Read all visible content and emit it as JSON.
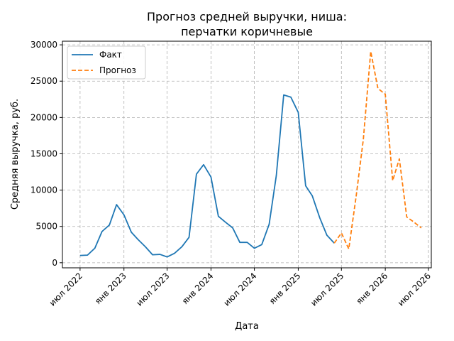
{
  "chart_data": {
    "type": "line",
    "title_lines": [
      "Прогноз средней выручки, ниша:",
      "перчатки коричневые"
    ],
    "xlabel": "Дата",
    "ylabel": "Средняя выручка, руб.",
    "ylim": [
      -700,
      30500
    ],
    "xlim": [
      "2022-04-18",
      "2026-07-13"
    ],
    "y_ticks": [
      0,
      5000,
      10000,
      15000,
      20000,
      25000,
      30000
    ],
    "x_ticks": [
      {
        "date": "2022-07-01",
        "label": "июл 2022"
      },
      {
        "date": "2023-01-01",
        "label": "янв 2023"
      },
      {
        "date": "2023-07-01",
        "label": "июл 2023"
      },
      {
        "date": "2024-01-01",
        "label": "янв 2024"
      },
      {
        "date": "2024-07-01",
        "label": "июл 2024"
      },
      {
        "date": "2025-01-01",
        "label": "янв 2025"
      },
      {
        "date": "2025-07-01",
        "label": "июл 2025"
      },
      {
        "date": "2026-01-01",
        "label": "янв 2026"
      },
      {
        "date": "2026-07-01",
        "label": "июл 2026"
      }
    ],
    "grid": true,
    "legend_position": "top-left",
    "series": [
      {
        "name": "Факт",
        "color": "#1f77b4",
        "style": "solid",
        "points": [
          {
            "x": "2022-07-01",
            "y": 1000
          },
          {
            "x": "2022-08-01",
            "y": 1050
          },
          {
            "x": "2022-09-01",
            "y": 2000
          },
          {
            "x": "2022-10-01",
            "y": 4300
          },
          {
            "x": "2022-11-01",
            "y": 5200
          },
          {
            "x": "2022-12-01",
            "y": 8000
          },
          {
            "x": "2023-01-01",
            "y": 6600
          },
          {
            "x": "2023-02-01",
            "y": 4200
          },
          {
            "x": "2023-03-01",
            "y": 3200
          },
          {
            "x": "2023-04-01",
            "y": 2200
          },
          {
            "x": "2023-05-01",
            "y": 1100
          },
          {
            "x": "2023-06-01",
            "y": 1150
          },
          {
            "x": "2023-07-01",
            "y": 800
          },
          {
            "x": "2023-08-01",
            "y": 1300
          },
          {
            "x": "2023-09-01",
            "y": 2200
          },
          {
            "x": "2023-10-01",
            "y": 3500
          },
          {
            "x": "2023-11-01",
            "y": 12200
          },
          {
            "x": "2023-12-01",
            "y": 13500
          },
          {
            "x": "2024-01-01",
            "y": 11800
          },
          {
            "x": "2024-02-01",
            "y": 6400
          },
          {
            "x": "2024-03-01",
            "y": 5600
          },
          {
            "x": "2024-04-01",
            "y": 4800
          },
          {
            "x": "2024-05-01",
            "y": 2800
          },
          {
            "x": "2024-06-01",
            "y": 2800
          },
          {
            "x": "2024-07-01",
            "y": 2000
          },
          {
            "x": "2024-08-01",
            "y": 2500
          },
          {
            "x": "2024-09-01",
            "y": 5300
          },
          {
            "x": "2024-10-01",
            "y": 12000
          },
          {
            "x": "2024-11-01",
            "y": 23100
          },
          {
            "x": "2024-12-01",
            "y": 22800
          },
          {
            "x": "2025-01-01",
            "y": 20700
          },
          {
            "x": "2025-02-01",
            "y": 10600
          },
          {
            "x": "2025-03-01",
            "y": 9200
          },
          {
            "x": "2025-04-01",
            "y": 6200
          },
          {
            "x": "2025-05-01",
            "y": 3800
          },
          {
            "x": "2025-06-01",
            "y": 2700
          }
        ]
      },
      {
        "name": "Прогноз",
        "color": "#ff7f0e",
        "style": "dashed",
        "points": [
          {
            "x": "2025-06-01",
            "y": 2700
          },
          {
            "x": "2025-07-01",
            "y": 4100
          },
          {
            "x": "2025-08-01",
            "y": 1900
          },
          {
            "x": "2025-09-01",
            "y": 9200
          },
          {
            "x": "2025-10-01",
            "y": 17000
          },
          {
            "x": "2025-11-01",
            "y": 29100
          },
          {
            "x": "2025-12-01",
            "y": 24000
          },
          {
            "x": "2026-01-01",
            "y": 23200
          },
          {
            "x": "2026-02-01",
            "y": 11300
          },
          {
            "x": "2026-03-01",
            "y": 14300
          },
          {
            "x": "2026-04-01",
            "y": 6300
          },
          {
            "x": "2026-05-01",
            "y": 5600
          },
          {
            "x": "2026-06-01",
            "y": 4800
          }
        ]
      }
    ]
  }
}
